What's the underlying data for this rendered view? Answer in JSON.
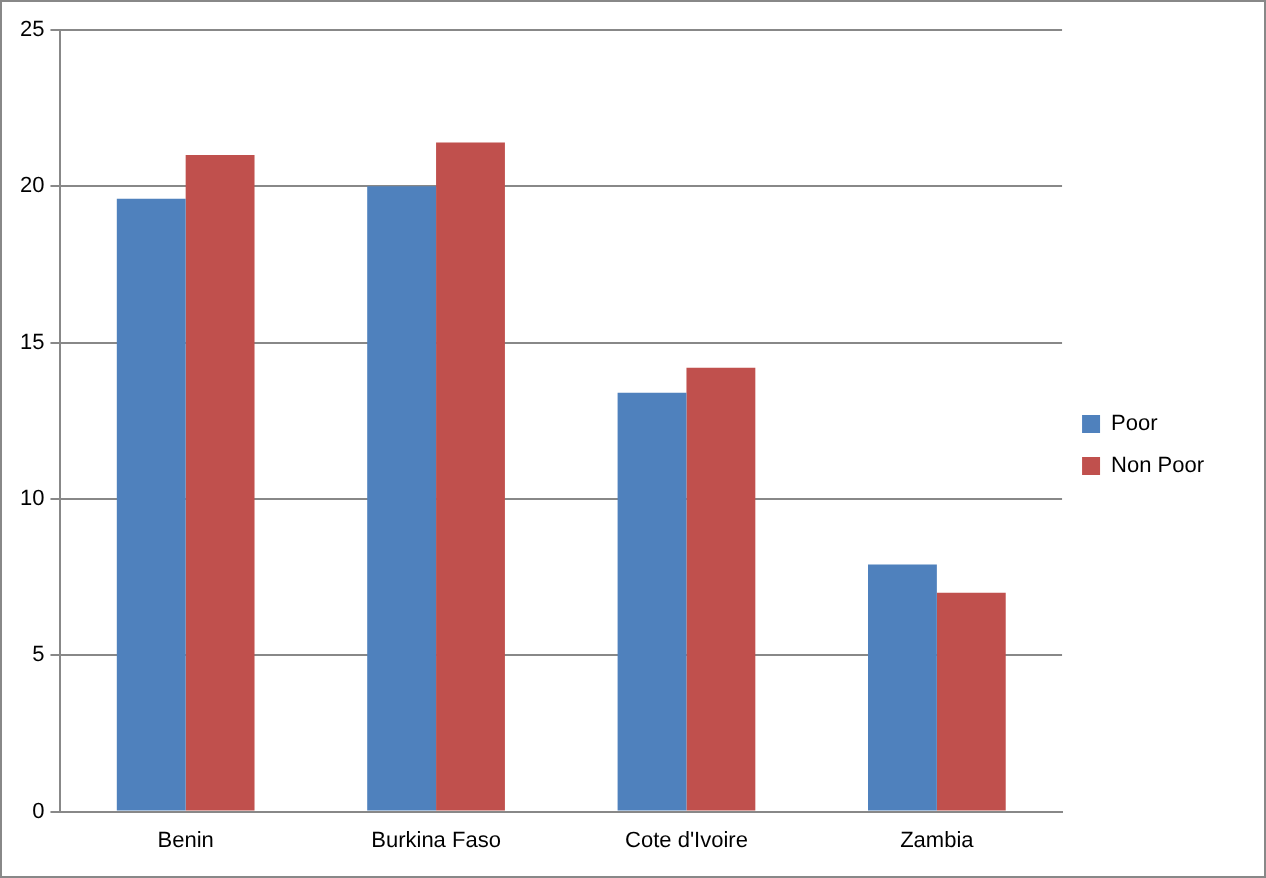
{
  "chart_data": {
    "type": "bar",
    "categories": [
      "Benin",
      "Burkina Faso",
      "Cote d'Ivoire",
      "Zambia"
    ],
    "series": [
      {
        "name": "Poor",
        "color": "#4f81bd",
        "values": [
          19.6,
          20.0,
          13.4,
          7.9
        ]
      },
      {
        "name": "Non Poor",
        "color": "#c0504d",
        "values": [
          21.0,
          21.4,
          14.2,
          7.0
        ]
      }
    ],
    "ylim": [
      0,
      25
    ],
    "yticks": [
      0,
      5,
      10,
      15,
      20,
      25
    ],
    "grid": "y",
    "legend": "right"
  }
}
